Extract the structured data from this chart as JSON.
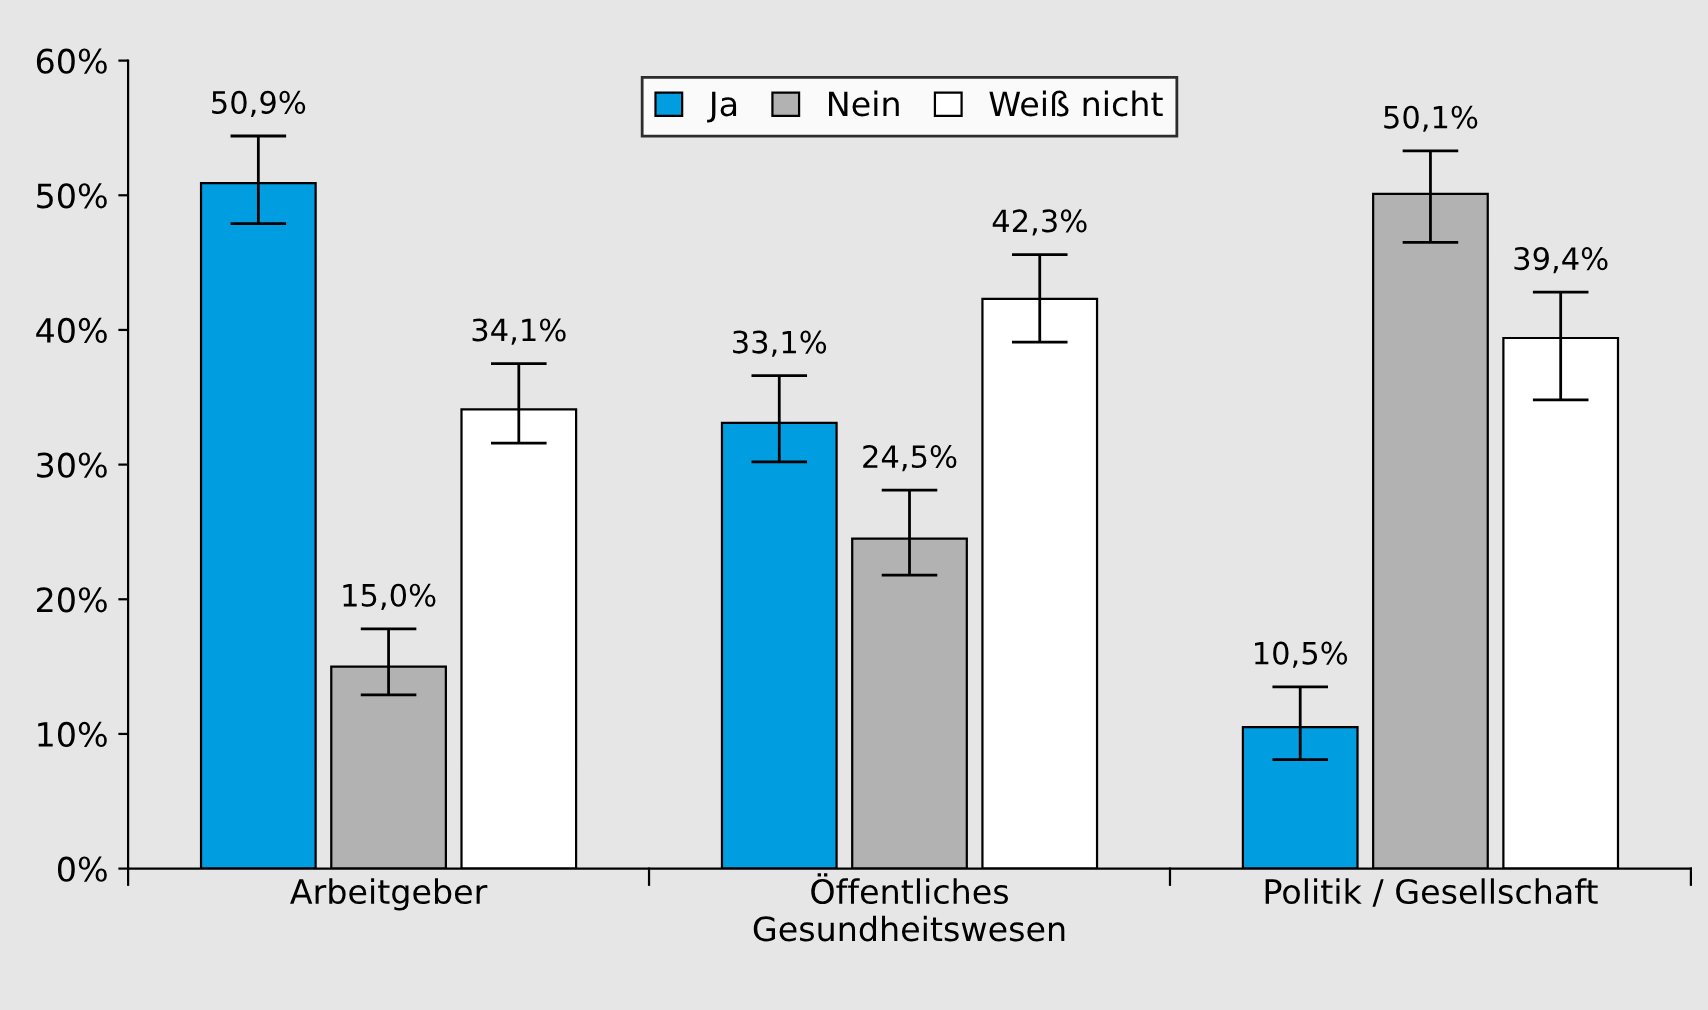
{
  "chart_data": {
    "type": "bar",
    "categories": [
      "Arbeitgeber",
      "Öffentliches\nGesundheitswesen",
      "Politik / Gesellschaft"
    ],
    "series": [
      {
        "name": "Ja",
        "color": "#009ee0",
        "values": [
          50.9,
          33.1,
          10.5
        ],
        "errors": [
          [
            47.9,
            54.4
          ],
          [
            30.2,
            36.6
          ],
          [
            8.1,
            13.5
          ]
        ],
        "value_labels": [
          "50,9%",
          "33,1%",
          "10,5%"
        ]
      },
      {
        "name": "Nein",
        "color": "#b2b2b2",
        "values": [
          15.0,
          24.5,
          50.1
        ],
        "errors": [
          [
            12.9,
            17.8
          ],
          [
            21.8,
            28.1
          ],
          [
            46.5,
            53.3
          ]
        ],
        "value_labels": [
          "15,0%",
          "24,5%",
          "50,1%"
        ]
      },
      {
        "name": "Weiß nicht",
        "color": "#ffffff",
        "values": [
          34.1,
          42.3,
          39.4
        ],
        "errors": [
          [
            31.6,
            37.5
          ],
          [
            39.1,
            45.6
          ],
          [
            34.8,
            42.8
          ]
        ],
        "value_labels": [
          "34,1%",
          "42,3%",
          "39,4%"
        ]
      }
    ],
    "ylim": [
      0,
      60
    ],
    "yticks": [
      {
        "value": 0,
        "label": "0%"
      },
      {
        "value": 10,
        "label": "10%"
      },
      {
        "value": 20,
        "label": "20%"
      },
      {
        "value": 30,
        "label": "30%"
      },
      {
        "value": 40,
        "label": "40%"
      },
      {
        "value": 50,
        "label": "50%"
      },
      {
        "value": 60,
        "label": "60%"
      }
    ],
    "legend": "top",
    "grid": false
  }
}
